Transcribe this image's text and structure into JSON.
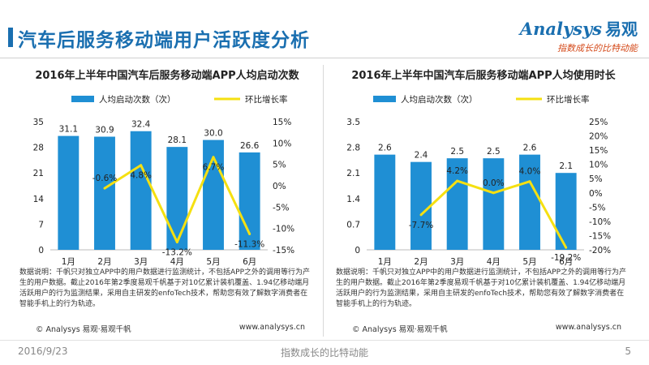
{
  "page": {
    "title": "汽车后服务移动端用户活跃度分析",
    "brand_name": "Analysys",
    "brand_cn": "易观",
    "brand_slogan": "指数成长的比特动能",
    "footer_date": "2016/9/23",
    "footer_slogan": "指数成长的比特动能",
    "page_number": "5",
    "note": "数据说明：千帆只对独立APP中的用户数据进行监测统计，不包括APP之外的调用等行为产生的用户数据。截止2016年第2季度易观千帆基于对10亿累计装机覆盖、1.94亿移动端月活跃用户的行为监测结果，采用自主研发的enfoTech技术，帮助您有效了解数字消费者在智能手机上的行为轨迹。",
    "source": "© Analysys 易观·易观千帆",
    "url": "www.analysys.cn",
    "colors": {
      "bar": "#1f8fd4",
      "line": "#f5e011",
      "title": "#1a6fb0",
      "slogan": "#d44a1a"
    }
  },
  "chart_data": [
    {
      "type": "bar",
      "title": "2016年上半年中国汽车后服务移动端APP人均启动次数",
      "categories": [
        "1月",
        "2月",
        "3月",
        "4月",
        "5月",
        "6月"
      ],
      "series": [
        {
          "name": "人均启动次数（次）",
          "type": "bar",
          "axis": "left",
          "values": [
            31.1,
            30.9,
            32.4,
            28.1,
            30.0,
            26.6
          ],
          "labels": [
            "31.1",
            "30.9",
            "32.4",
            "28.1",
            "30.0",
            "26.6"
          ]
        },
        {
          "name": "环比增长率",
          "type": "line",
          "axis": "right",
          "values": [
            null,
            -0.6,
            4.8,
            -13.2,
            6.7,
            -11.3
          ],
          "labels": [
            "",
            "-0.6%",
            "4.8%",
            "-13.2%",
            "6.7%",
            "-11.3%"
          ]
        }
      ],
      "ylim": [
        0,
        35
      ],
      "yticks": [
        "0",
        "7",
        "14",
        "21",
        "28",
        "35"
      ],
      "y2lim": [
        -15,
        15
      ],
      "y2ticks": [
        "-15%",
        "-10%",
        "-5%",
        "0%",
        "5%",
        "10%",
        "15%"
      ],
      "legend": "top"
    },
    {
      "type": "bar",
      "title": "2016年上半年中国汽车后服务移动端APP人均使用时长",
      "categories": [
        "1月",
        "2月",
        "3月",
        "4月",
        "5月",
        "6月"
      ],
      "series": [
        {
          "name": "人均启动次数（次）",
          "type": "bar",
          "axis": "left",
          "values": [
            2.6,
            2.4,
            2.5,
            2.5,
            2.6,
            2.1
          ],
          "labels": [
            "2.6",
            "2.4",
            "2.5",
            "2.5",
            "2.6",
            "2.1"
          ]
        },
        {
          "name": "环比增长率",
          "type": "line",
          "axis": "right",
          "values": [
            null,
            -7.7,
            4.2,
            0.0,
            4.0,
            -19.2
          ],
          "labels": [
            "",
            "-7.7%",
            "4.2%",
            "0.0%",
            "4.0%",
            "-19.2%"
          ]
        }
      ],
      "ylim": [
        0,
        3.5
      ],
      "yticks": [
        "0",
        "0.7",
        "1.4",
        "2.1",
        "2.8",
        "3.5"
      ],
      "y2lim": [
        -20,
        25
      ],
      "y2ticks": [
        "-20%",
        "-15%",
        "-10%",
        "-5%",
        "0%",
        "5%",
        "10%",
        "15%",
        "20%",
        "25%"
      ],
      "legend": "top"
    }
  ]
}
